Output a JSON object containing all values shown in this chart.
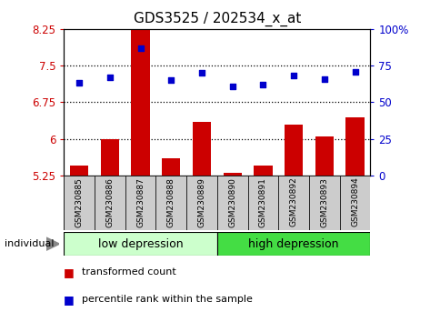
{
  "title": "GDS3525 / 202534_x_at",
  "samples": [
    "GSM230885",
    "GSM230886",
    "GSM230887",
    "GSM230888",
    "GSM230889",
    "GSM230890",
    "GSM230891",
    "GSM230892",
    "GSM230893",
    "GSM230894"
  ],
  "bar_values": [
    5.45,
    6.0,
    8.3,
    5.6,
    6.35,
    5.3,
    5.45,
    6.3,
    6.05,
    6.45
  ],
  "scatter_values": [
    63,
    67,
    87,
    65,
    70,
    61,
    62,
    68,
    66,
    71
  ],
  "ylim_left": [
    5.25,
    8.25
  ],
  "ylim_right": [
    0,
    100
  ],
  "yticks_left": [
    5.25,
    6.0,
    6.75,
    7.5,
    8.25
  ],
  "yticks_right": [
    0,
    25,
    50,
    75,
    100
  ],
  "ytick_labels_left": [
    "5.25",
    "6",
    "6.75",
    "7.5",
    "8.25"
  ],
  "ytick_labels_right": [
    "0",
    "25",
    "50",
    "75",
    "100%"
  ],
  "bar_color": "#cc0000",
  "scatter_color": "#0000cc",
  "group1_label": "low depression",
  "group2_label": "high depression",
  "group1_indices": [
    0,
    1,
    2,
    3,
    4
  ],
  "group2_indices": [
    5,
    6,
    7,
    8,
    9
  ],
  "group1_color": "#ccffcc",
  "group2_color": "#44dd44",
  "group_border_color": "#000000",
  "xtick_bg_color": "#cccccc",
  "legend_bar_label": "transformed count",
  "legend_scatter_label": "percentile rank within the sample",
  "individual_label": "individual",
  "hline_values": [
    6.0,
    6.75,
    7.5
  ],
  "bar_baseline": 5.25,
  "title_fontsize": 11,
  "tick_fontsize": 8.5,
  "label_fontsize": 8.5,
  "group_fontsize": 9
}
